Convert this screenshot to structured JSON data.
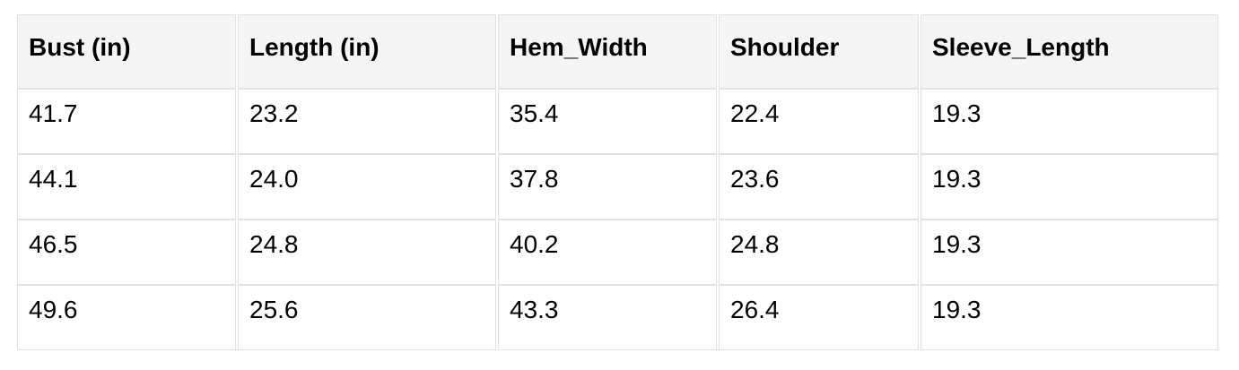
{
  "colors": {
    "page_background": "#ffffff",
    "header_background": "#f5f5f5",
    "cell_background": "#ffffff",
    "border": "#e1e1e1",
    "text": "#000000"
  },
  "chart_data": {
    "type": "table",
    "columns": [
      "Bust (in)",
      "Length (in)",
      "Hem_Width",
      "Shoulder",
      "Sleeve_Length"
    ],
    "rows": [
      [
        "41.7",
        "23.2",
        "35.4",
        "22.4",
        "19.3"
      ],
      [
        "44.1",
        "24.0",
        "37.8",
        "23.6",
        "19.3"
      ],
      [
        "46.5",
        "24.8",
        "40.2",
        "24.8",
        "19.3"
      ],
      [
        "49.6",
        "25.6",
        "43.3",
        "26.4",
        "19.3"
      ]
    ]
  }
}
